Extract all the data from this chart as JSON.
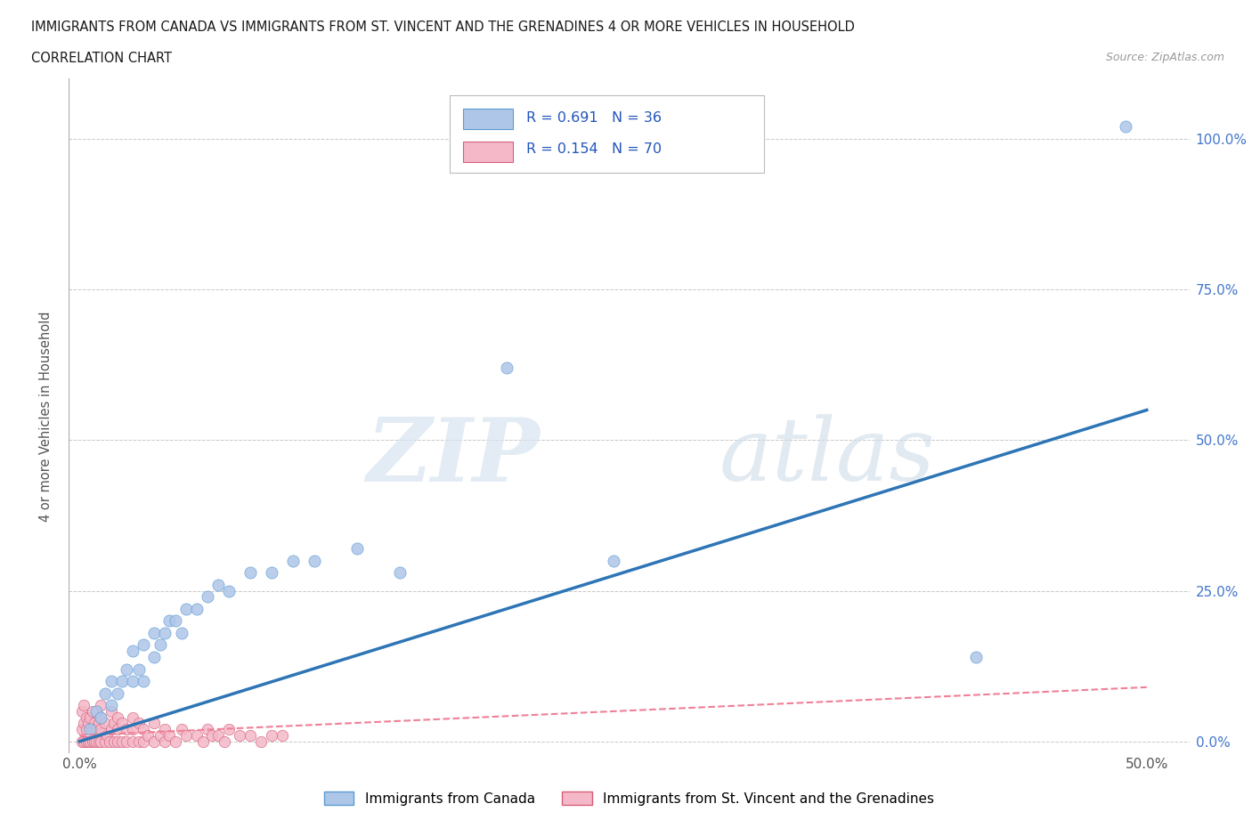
{
  "title_line1": "IMMIGRANTS FROM CANADA VS IMMIGRANTS FROM ST. VINCENT AND THE GRENADINES 4 OR MORE VEHICLES IN HOUSEHOLD",
  "title_line2": "CORRELATION CHART",
  "source_text": "Source: ZipAtlas.com",
  "ylabel": "4 or more Vehicles in Household",
  "xlim": [
    -0.005,
    0.52
  ],
  "ylim": [
    -0.02,
    1.1
  ],
  "ytick_labels_right": [
    "0.0%",
    "25.0%",
    "50.0%",
    "75.0%",
    "100.0%"
  ],
  "ytick_values": [
    0.0,
    0.25,
    0.5,
    0.75,
    1.0
  ],
  "xtick_labels": [
    "0.0%",
    "50.0%"
  ],
  "xtick_values": [
    0.0,
    0.5
  ],
  "r_canada": 0.691,
  "n_canada": 36,
  "r_svg": 0.154,
  "n_svg": 70,
  "canada_color": "#aec6e8",
  "canada_edge_color": "#5b9bd5",
  "canada_line_color": "#2e75b6",
  "svg_color": "#f4b8c8",
  "svg_edge_color": "#d45f7a",
  "svg_line_color": "#f08098",
  "watermark_zip": "ZIP",
  "watermark_atlas": "atlas",
  "background_color": "#ffffff",
  "grid_color": "#c8c8c8",
  "legend_label_canada": "Immigrants from Canada",
  "legend_label_svg": "Immigrants from St. Vincent and the Grenadines",
  "canada_scatter_x": [
    0.005,
    0.008,
    0.01,
    0.012,
    0.015,
    0.015,
    0.018,
    0.02,
    0.022,
    0.025,
    0.025,
    0.028,
    0.03,
    0.03,
    0.035,
    0.035,
    0.038,
    0.04,
    0.042,
    0.045,
    0.048,
    0.05,
    0.055,
    0.06,
    0.065,
    0.07,
    0.08,
    0.09,
    0.1,
    0.11,
    0.13,
    0.15,
    0.2,
    0.25,
    0.42,
    0.49
  ],
  "canada_scatter_y": [
    0.02,
    0.05,
    0.04,
    0.08,
    0.06,
    0.1,
    0.08,
    0.1,
    0.12,
    0.1,
    0.15,
    0.12,
    0.1,
    0.16,
    0.14,
    0.18,
    0.16,
    0.18,
    0.2,
    0.2,
    0.18,
    0.22,
    0.22,
    0.24,
    0.26,
    0.25,
    0.28,
    0.28,
    0.3,
    0.3,
    0.32,
    0.28,
    0.62,
    0.3,
    0.14,
    1.02
  ],
  "svg_scatter_x": [
    0.001,
    0.001,
    0.001,
    0.002,
    0.002,
    0.002,
    0.003,
    0.003,
    0.003,
    0.004,
    0.004,
    0.005,
    0.005,
    0.006,
    0.006,
    0.006,
    0.007,
    0.007,
    0.008,
    0.008,
    0.009,
    0.009,
    0.01,
    0.01,
    0.01,
    0.01,
    0.012,
    0.012,
    0.013,
    0.014,
    0.015,
    0.015,
    0.016,
    0.016,
    0.018,
    0.018,
    0.018,
    0.02,
    0.02,
    0.022,
    0.022,
    0.025,
    0.025,
    0.025,
    0.028,
    0.028,
    0.03,
    0.03,
    0.032,
    0.035,
    0.035,
    0.038,
    0.04,
    0.04,
    0.042,
    0.045,
    0.048,
    0.05,
    0.055,
    0.058,
    0.06,
    0.062,
    0.065,
    0.068,
    0.07,
    0.075,
    0.08,
    0.085,
    0.09,
    0.095
  ],
  "svg_scatter_y": [
    0.0,
    0.02,
    0.05,
    0.0,
    0.03,
    0.06,
    0.0,
    0.02,
    0.04,
    0.0,
    0.03,
    0.0,
    0.04,
    0.0,
    0.02,
    0.05,
    0.0,
    0.03,
    0.0,
    0.02,
    0.0,
    0.03,
    0.0,
    0.02,
    0.04,
    0.06,
    0.0,
    0.03,
    0.01,
    0.0,
    0.02,
    0.05,
    0.0,
    0.03,
    0.0,
    0.02,
    0.04,
    0.0,
    0.03,
    0.0,
    0.02,
    0.0,
    0.02,
    0.04,
    0.0,
    0.03,
    0.0,
    0.02,
    0.01,
    0.0,
    0.03,
    0.01,
    0.0,
    0.02,
    0.01,
    0.0,
    0.02,
    0.01,
    0.01,
    0.0,
    0.02,
    0.01,
    0.01,
    0.0,
    0.02,
    0.01,
    0.01,
    0.0,
    0.01,
    0.01
  ],
  "canada_trend_x": [
    0.0,
    0.5
  ],
  "canada_trend_y": [
    0.0,
    0.55
  ],
  "svg_trend_x": [
    0.0,
    0.5
  ],
  "svg_trend_y": [
    0.01,
    0.09
  ]
}
